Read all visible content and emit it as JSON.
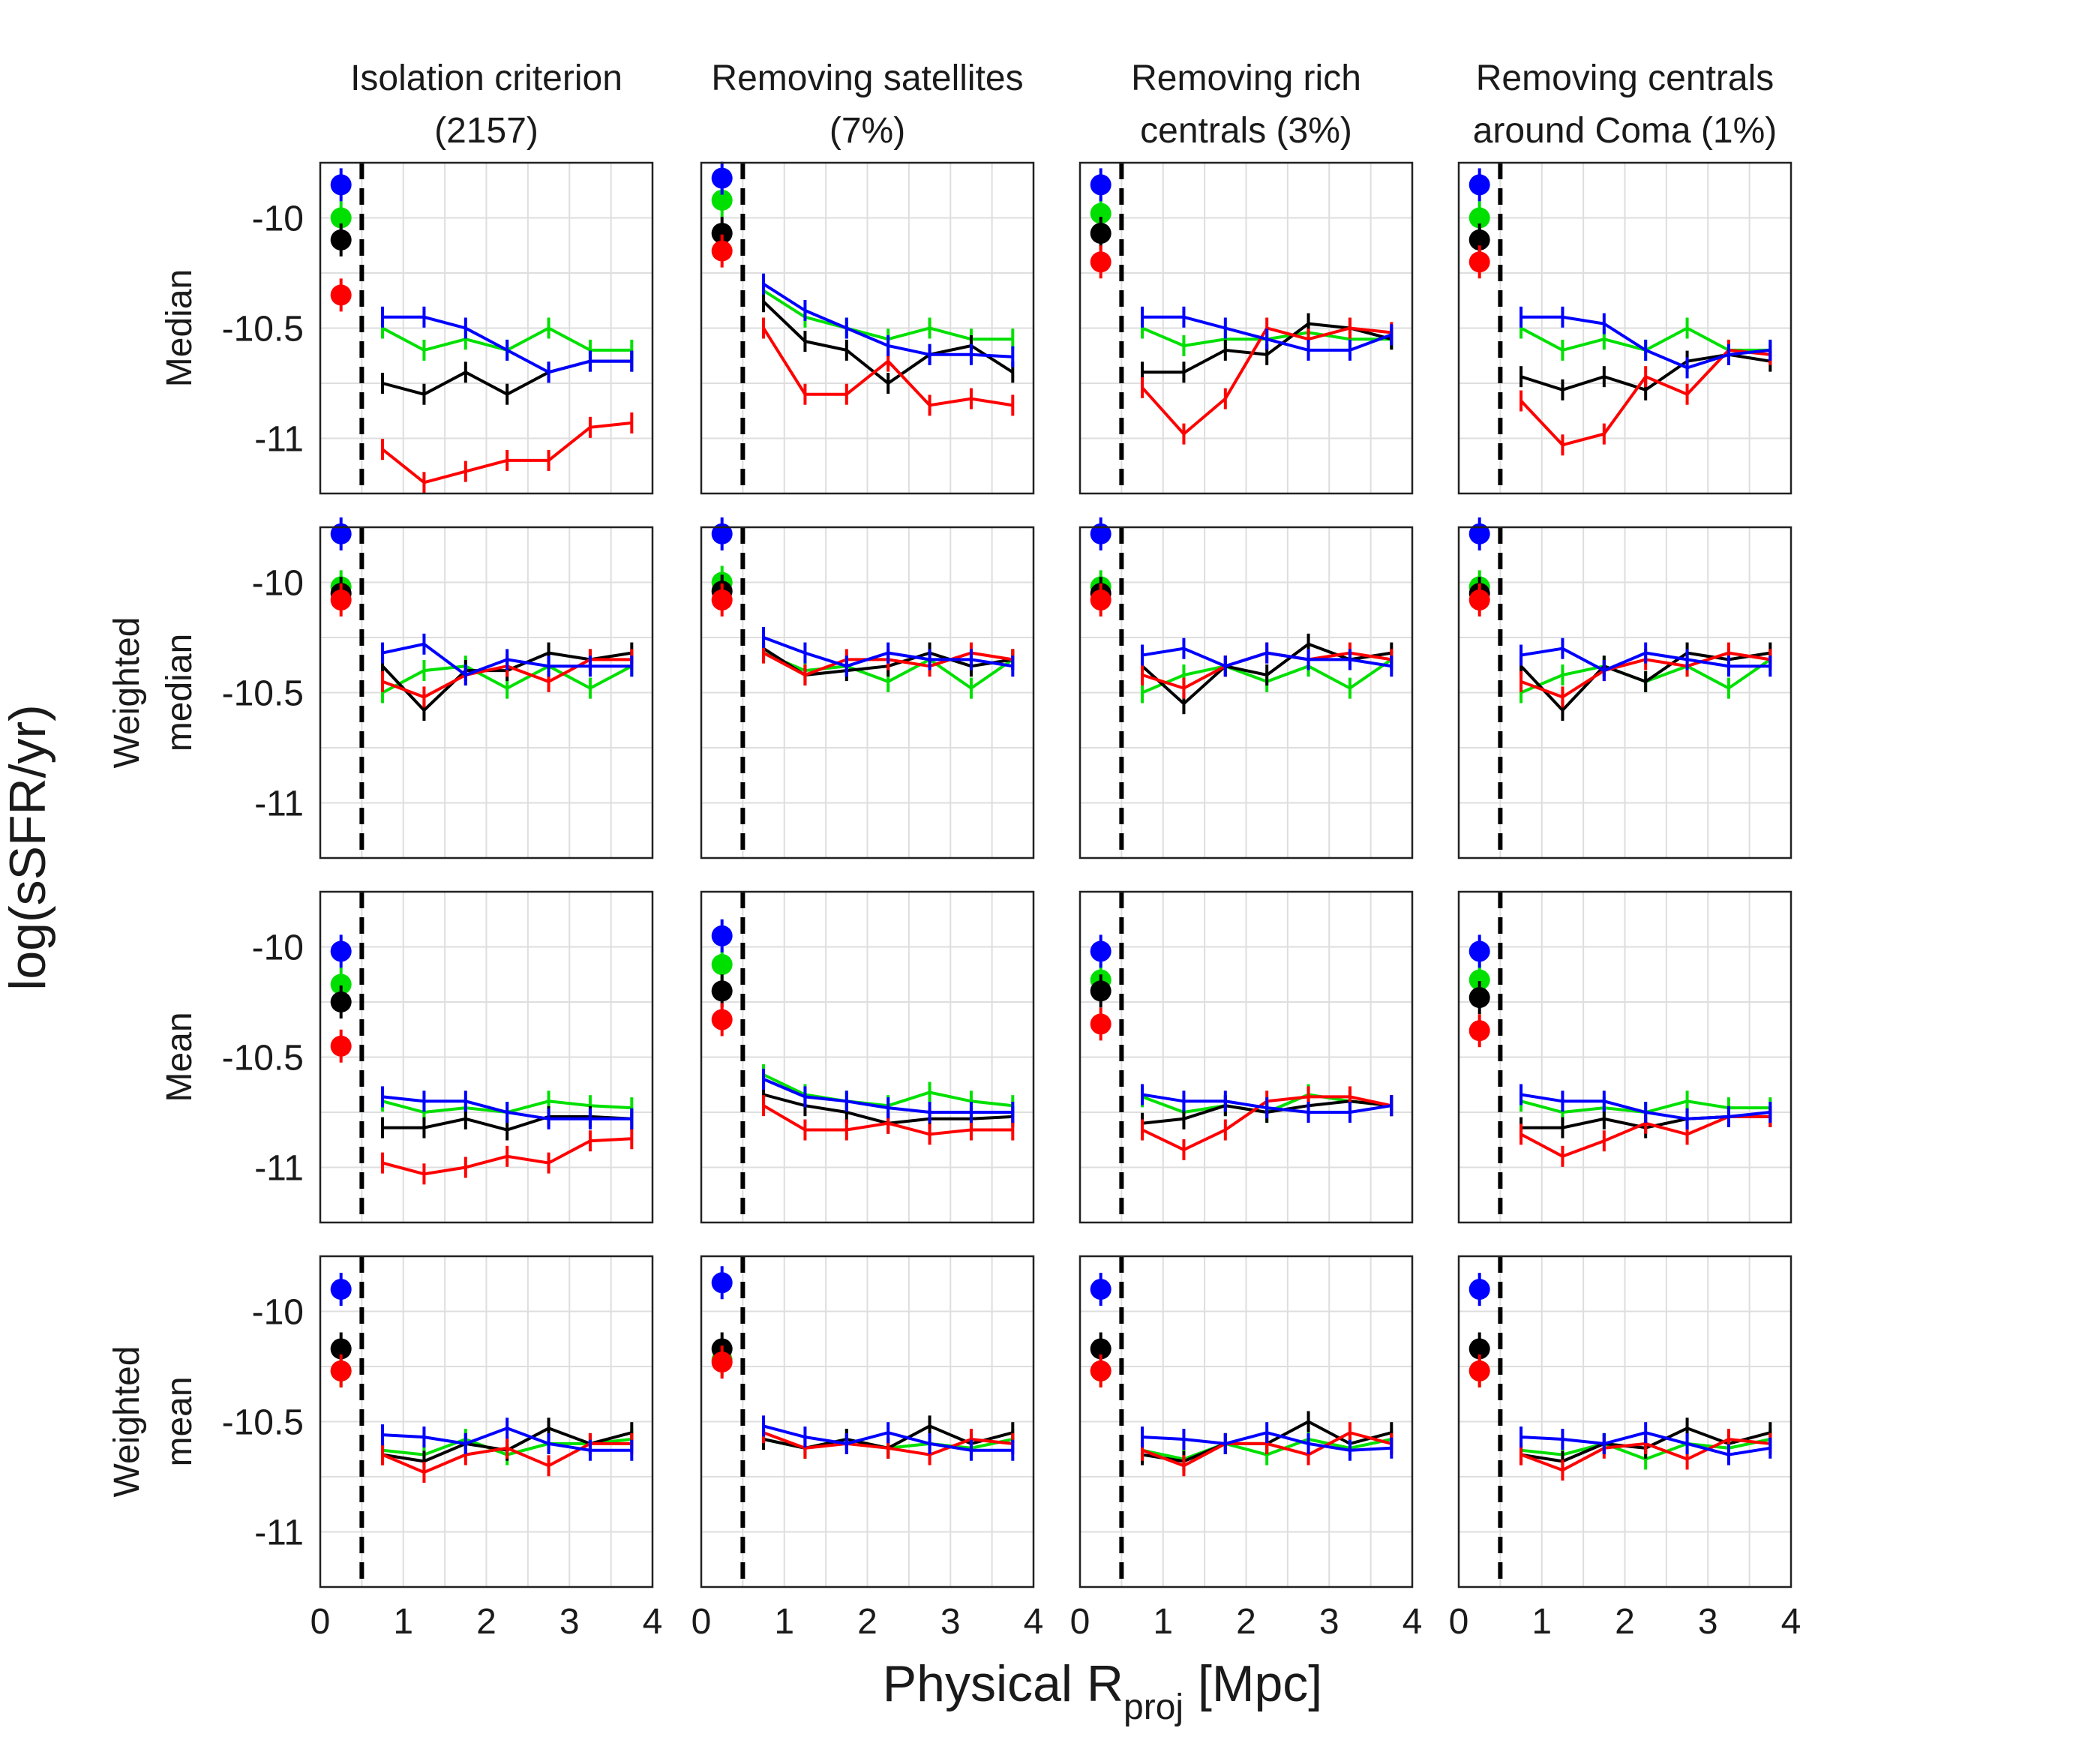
{
  "figure": {
    "ylabel": "log(sSFR/yr)",
    "xlabel_main": "Physical R",
    "xlabel_sub": "proj",
    "xlabel_unit": " [Mpc]",
    "column_titles": [
      [
        "Isolation criterion",
        "(2157)"
      ],
      [
        "Removing satellites",
        "(7%)"
      ],
      [
        "Removing rich",
        "centrals (3%)"
      ],
      [
        "Removing centrals",
        "around Coma (1%)"
      ]
    ],
    "row_labels": [
      [
        "Median"
      ],
      [
        "Weighted",
        "median"
      ],
      [
        "Mean"
      ],
      [
        "Weighted",
        "mean"
      ]
    ],
    "x_ticks": [
      0,
      1,
      2,
      3,
      4
    ],
    "y_ticks": [
      -10,
      -10.5,
      -11
    ],
    "y_tick_labels": [
      "-10",
      "-10.5",
      "-11"
    ],
    "colors": {
      "blue": "#0000ff",
      "green": "#00e000",
      "black": "#000000",
      "red": "#ff0000"
    }
  },
  "chart_data": {
    "type": "line",
    "xlim": [
      0,
      4
    ],
    "ylim": [
      -11.25,
      -9.75
    ],
    "divider_x": 0.5,
    "x": [
      0.75,
      1.25,
      1.75,
      2.25,
      2.75,
      3.25,
      3.75
    ],
    "inner_x": 0.25,
    "series_order": [
      "green",
      "black",
      "red",
      "blue"
    ],
    "panels": [
      [
        {
          "inner": {
            "blue": -9.85,
            "green": -10.0,
            "black": -10.1,
            "red": -10.35
          },
          "series": {
            "blue": [
              -10.45,
              -10.45,
              -10.5,
              -10.6,
              -10.7,
              -10.65,
              -10.65
            ],
            "green": [
              -10.5,
              -10.6,
              -10.55,
              -10.6,
              -10.5,
              -10.6,
              -10.6
            ],
            "black": [
              -10.75,
              -10.8,
              -10.7,
              -10.8,
              -10.7,
              -10.65,
              -10.65
            ],
            "red": [
              -11.05,
              -11.2,
              -11.15,
              -11.1,
              -11.1,
              -10.95,
              -10.93
            ]
          }
        },
        {
          "inner": {
            "blue": -9.82,
            "green": -9.92,
            "black": -10.07,
            "red": -10.15
          },
          "series": {
            "blue": [
              -10.3,
              -10.42,
              -10.5,
              -10.58,
              -10.62,
              -10.62,
              -10.63
            ],
            "green": [
              -10.33,
              -10.45,
              -10.5,
              -10.55,
              -10.5,
              -10.55,
              -10.55
            ],
            "black": [
              -10.38,
              -10.56,
              -10.6,
              -10.75,
              -10.62,
              -10.58,
              -10.7
            ],
            "red": [
              -10.5,
              -10.8,
              -10.8,
              -10.65,
              -10.85,
              -10.82,
              -10.85
            ]
          }
        },
        {
          "inner": {
            "blue": -9.85,
            "green": -9.98,
            "black": -10.07,
            "red": -10.2
          },
          "series": {
            "blue": [
              -10.45,
              -10.45,
              -10.5,
              -10.55,
              -10.6,
              -10.6,
              -10.53
            ],
            "green": [
              -10.5,
              -10.58,
              -10.55,
              -10.55,
              -10.52,
              -10.55,
              -10.55
            ],
            "black": [
              -10.7,
              -10.7,
              -10.6,
              -10.62,
              -10.48,
              -10.5,
              -10.55
            ],
            "red": [
              -10.77,
              -10.98,
              -10.82,
              -10.5,
              -10.55,
              -10.5,
              -10.52
            ]
          }
        },
        {
          "inner": {
            "blue": -9.85,
            "green": -10.0,
            "black": -10.1,
            "red": -10.2
          },
          "series": {
            "blue": [
              -10.45,
              -10.45,
              -10.48,
              -10.6,
              -10.68,
              -10.62,
              -10.6
            ],
            "green": [
              -10.5,
              -10.6,
              -10.55,
              -10.6,
              -10.5,
              -10.6,
              -10.6
            ],
            "black": [
              -10.72,
              -10.78,
              -10.72,
              -10.78,
              -10.65,
              -10.62,
              -10.65
            ],
            "red": [
              -10.83,
              -11.03,
              -10.98,
              -10.72,
              -10.8,
              -10.6,
              -10.62
            ]
          }
        }
      ],
      [
        {
          "inner": {
            "blue": -9.78,
            "green": -10.02,
            "black": -10.05,
            "red": -10.08
          },
          "series": {
            "blue": [
              -10.32,
              -10.28,
              -10.42,
              -10.35,
              -10.38,
              -10.38,
              -10.38
            ],
            "green": [
              -10.5,
              -10.4,
              -10.38,
              -10.48,
              -10.38,
              -10.48,
              -10.38
            ],
            "black": [
              -10.38,
              -10.58,
              -10.4,
              -10.4,
              -10.32,
              -10.35,
              -10.32
            ],
            "red": [
              -10.45,
              -10.52,
              -10.42,
              -10.38,
              -10.45,
              -10.35,
              -10.35
            ]
          }
        },
        {
          "inner": {
            "blue": -9.78,
            "green": -10.0,
            "black": -10.04,
            "red": -10.08
          },
          "series": {
            "blue": [
              -10.25,
              -10.32,
              -10.38,
              -10.32,
              -10.35,
              -10.35,
              -10.38
            ],
            "green": [
              -10.32,
              -10.4,
              -10.38,
              -10.45,
              -10.35,
              -10.48,
              -10.35
            ],
            "black": [
              -10.3,
              -10.42,
              -10.4,
              -10.38,
              -10.32,
              -10.38,
              -10.35
            ],
            "red": [
              -10.32,
              -10.42,
              -10.35,
              -10.35,
              -10.38,
              -10.32,
              -10.35
            ]
          }
        },
        {
          "inner": {
            "blue": -9.78,
            "green": -10.02,
            "black": -10.05,
            "red": -10.08
          },
          "series": {
            "blue": [
              -10.33,
              -10.3,
              -10.38,
              -10.32,
              -10.35,
              -10.35,
              -10.38
            ],
            "green": [
              -10.5,
              -10.42,
              -10.38,
              -10.45,
              -10.38,
              -10.48,
              -10.35
            ],
            "black": [
              -10.38,
              -10.55,
              -10.38,
              -10.42,
              -10.28,
              -10.35,
              -10.32
            ],
            "red": [
              -10.42,
              -10.48,
              -10.38,
              -10.32,
              -10.35,
              -10.32,
              -10.35
            ]
          }
        },
        {
          "inner": {
            "blue": -9.78,
            "green": -10.02,
            "black": -10.05,
            "red": -10.08
          },
          "series": {
            "blue": [
              -10.33,
              -10.3,
              -10.4,
              -10.32,
              -10.35,
              -10.38,
              -10.38
            ],
            "green": [
              -10.5,
              -10.42,
              -10.38,
              -10.45,
              -10.38,
              -10.48,
              -10.35
            ],
            "black": [
              -10.38,
              -10.58,
              -10.38,
              -10.45,
              -10.32,
              -10.35,
              -10.32
            ],
            "red": [
              -10.45,
              -10.52,
              -10.4,
              -10.35,
              -10.38,
              -10.32,
              -10.35
            ]
          }
        }
      ],
      [
        {
          "inner": {
            "blue": -10.02,
            "green": -10.17,
            "black": -10.25,
            "red": -10.45
          },
          "series": {
            "blue": [
              -10.68,
              -10.7,
              -10.7,
              -10.75,
              -10.78,
              -10.78,
              -10.78
            ],
            "green": [
              -10.7,
              -10.75,
              -10.73,
              -10.75,
              -10.7,
              -10.72,
              -10.73
            ],
            "black": [
              -10.82,
              -10.82,
              -10.78,
              -10.83,
              -10.77,
              -10.77,
              -10.78
            ],
            "red": [
              -10.98,
              -11.03,
              -11.0,
              -10.95,
              -10.98,
              -10.88,
              -10.87
            ]
          }
        },
        {
          "inner": {
            "blue": -9.95,
            "green": -10.08,
            "black": -10.2,
            "red": -10.33
          },
          "series": {
            "blue": [
              -10.6,
              -10.68,
              -10.7,
              -10.73,
              -10.75,
              -10.75,
              -10.75
            ],
            "green": [
              -10.58,
              -10.67,
              -10.7,
              -10.72,
              -10.66,
              -10.7,
              -10.72
            ],
            "black": [
              -10.67,
              -10.72,
              -10.75,
              -10.8,
              -10.78,
              -10.78,
              -10.77
            ],
            "red": [
              -10.72,
              -10.83,
              -10.83,
              -10.8,
              -10.85,
              -10.83,
              -10.83
            ]
          }
        },
        {
          "inner": {
            "blue": -10.02,
            "green": -10.15,
            "black": -10.2,
            "red": -10.35
          },
          "series": {
            "blue": [
              -10.67,
              -10.7,
              -10.7,
              -10.73,
              -10.75,
              -10.75,
              -10.72
            ],
            "green": [
              -10.68,
              -10.75,
              -10.72,
              -10.75,
              -10.67,
              -10.7,
              -10.72
            ],
            "black": [
              -10.8,
              -10.78,
              -10.72,
              -10.75,
              -10.72,
              -10.7,
              -10.72
            ],
            "red": [
              -10.83,
              -10.92,
              -10.83,
              -10.7,
              -10.68,
              -10.68,
              -10.72
            ]
          }
        },
        {
          "inner": {
            "blue": -10.02,
            "green": -10.15,
            "black": -10.23,
            "red": -10.38
          },
          "series": {
            "blue": [
              -10.67,
              -10.7,
              -10.7,
              -10.75,
              -10.78,
              -10.77,
              -10.75
            ],
            "green": [
              -10.7,
              -10.75,
              -10.73,
              -10.75,
              -10.7,
              -10.73,
              -10.73
            ],
            "black": [
              -10.82,
              -10.82,
              -10.78,
              -10.82,
              -10.78,
              -10.77,
              -10.77
            ],
            "red": [
              -10.85,
              -10.95,
              -10.88,
              -10.8,
              -10.85,
              -10.77,
              -10.77
            ]
          }
        }
      ],
      [
        {
          "inner": {
            "blue": -9.9,
            "green": -10.27,
            "black": -10.17,
            "red": -10.27
          },
          "series": {
            "blue": [
              -10.56,
              -10.57,
              -10.6,
              -10.53,
              -10.6,
              -10.63,
              -10.63
            ],
            "green": [
              -10.63,
              -10.65,
              -10.58,
              -10.65,
              -10.6,
              -10.6,
              -10.58
            ],
            "black": [
              -10.65,
              -10.68,
              -10.6,
              -10.63,
              -10.53,
              -10.6,
              -10.55
            ],
            "red": [
              -10.65,
              -10.73,
              -10.65,
              -10.62,
              -10.7,
              -10.6,
              -10.6
            ]
          }
        },
        {
          "inner": {
            "blue": -9.87,
            "green": -10.22,
            "black": -10.17,
            "red": -10.23
          },
          "series": {
            "blue": [
              -10.52,
              -10.57,
              -10.6,
              -10.55,
              -10.6,
              -10.63,
              -10.63
            ],
            "green": [
              -10.58,
              -10.62,
              -10.58,
              -10.62,
              -10.6,
              -10.62,
              -10.58
            ],
            "black": [
              -10.58,
              -10.62,
              -10.58,
              -10.62,
              -10.52,
              -10.6,
              -10.55
            ],
            "red": [
              -10.55,
              -10.62,
              -10.6,
              -10.62,
              -10.65,
              -10.58,
              -10.6
            ]
          }
        },
        {
          "inner": {
            "blue": -9.9,
            "green": -10.27,
            "black": -10.17,
            "red": -10.27
          },
          "series": {
            "blue": [
              -10.57,
              -10.58,
              -10.6,
              -10.55,
              -10.6,
              -10.63,
              -10.62
            ],
            "green": [
              -10.63,
              -10.67,
              -10.6,
              -10.65,
              -10.58,
              -10.62,
              -10.58
            ],
            "black": [
              -10.65,
              -10.68,
              -10.6,
              -10.6,
              -10.5,
              -10.6,
              -10.55
            ],
            "red": [
              -10.63,
              -10.7,
              -10.6,
              -10.6,
              -10.65,
              -10.55,
              -10.6
            ]
          }
        },
        {
          "inner": {
            "blue": -9.9,
            "green": -10.27,
            "black": -10.17,
            "red": -10.27
          },
          "series": {
            "blue": [
              -10.57,
              -10.58,
              -10.6,
              -10.55,
              -10.6,
              -10.65,
              -10.62
            ],
            "green": [
              -10.63,
              -10.65,
              -10.6,
              -10.67,
              -10.6,
              -10.62,
              -10.58
            ],
            "black": [
              -10.65,
              -10.68,
              -10.6,
              -10.62,
              -10.53,
              -10.6,
              -10.55
            ],
            "red": [
              -10.65,
              -10.72,
              -10.62,
              -10.6,
              -10.67,
              -10.58,
              -10.6
            ]
          }
        }
      ]
    ]
  }
}
